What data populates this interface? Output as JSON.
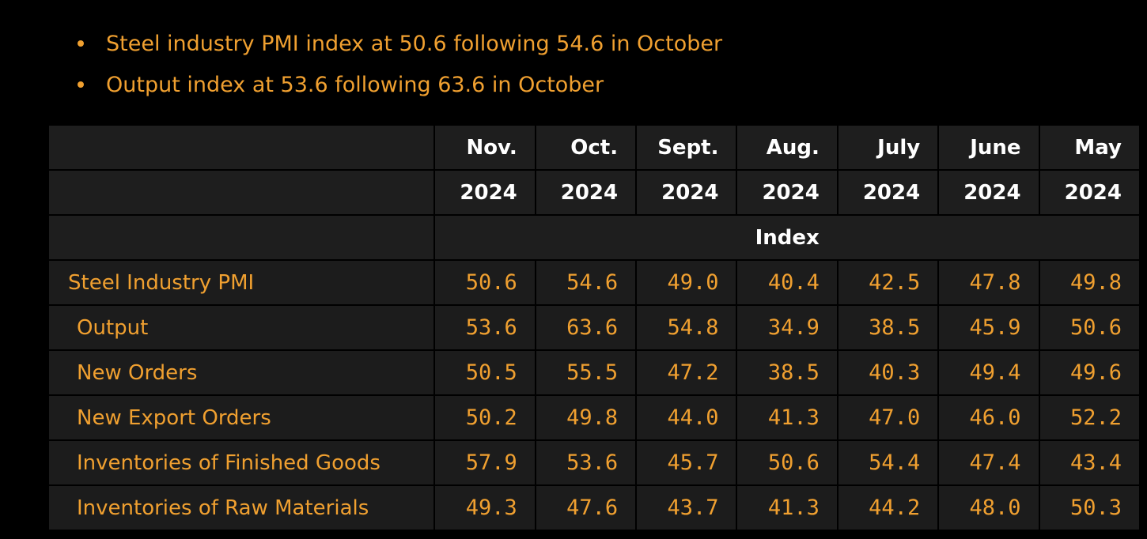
{
  "bullets": [
    "Steel industry PMI index at 50.6 following 54.6 in October",
    "Output index at 53.6 following 63.6 in October"
  ],
  "table": {
    "months": [
      "Nov.",
      "Oct.",
      "Sept.",
      "Aug.",
      "July",
      "June",
      "May"
    ],
    "years": [
      "2024",
      "2024",
      "2024",
      "2024",
      "2024",
      "2024",
      "2024"
    ],
    "unit": "Index",
    "rows": [
      {
        "label": "Steel Industry PMI",
        "values": [
          "50.6",
          "54.6",
          "49.0",
          "40.4",
          "42.5",
          "47.8",
          "49.8"
        ]
      },
      {
        "label": "Output",
        "values": [
          "53.6",
          "63.6",
          "54.8",
          "34.9",
          "38.5",
          "45.9",
          "50.6"
        ]
      },
      {
        "label": "New Orders",
        "values": [
          "50.5",
          "55.5",
          "47.2",
          "38.5",
          "40.3",
          "49.4",
          "49.6"
        ]
      },
      {
        "label": "New Export Orders",
        "values": [
          "50.2",
          "49.8",
          "44.0",
          "41.3",
          "47.0",
          "46.0",
          "52.2"
        ]
      },
      {
        "label": "Inventories of Finished Goods",
        "values": [
          "57.9",
          "53.6",
          "45.7",
          "50.6",
          "54.4",
          "47.4",
          "43.4"
        ]
      },
      {
        "label": "Inventories of Raw Materials",
        "values": [
          "49.3",
          "47.6",
          "43.7",
          "41.3",
          "44.2",
          "48.0",
          "50.3"
        ]
      }
    ]
  },
  "colors": {
    "background": "#000000",
    "text_accent": "#f0a030",
    "header_text": "#ffffff",
    "cell_bg": "#1c1c1c"
  }
}
